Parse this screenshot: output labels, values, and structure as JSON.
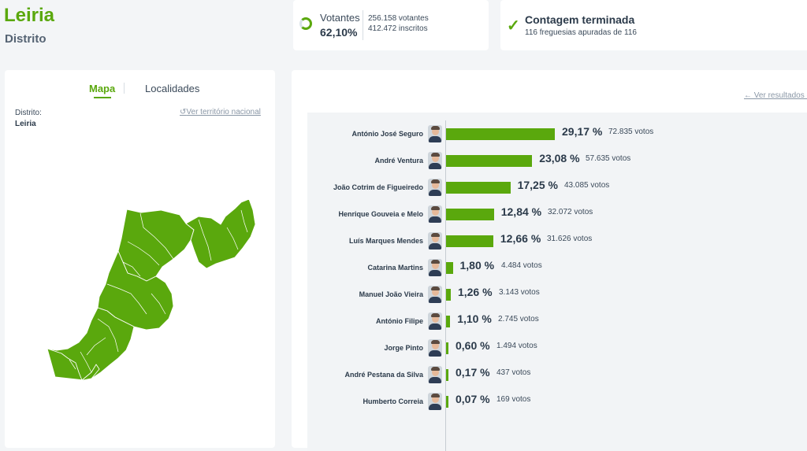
{
  "header": {
    "title": "Leiria",
    "subtitle": "Distrito"
  },
  "votantes": {
    "label": "Votantes",
    "percent": "62,10%",
    "votantes": "256.158 votantes",
    "inscritos": "412.472 inscritos",
    "progress_percent": 62.1
  },
  "contagem": {
    "title": "Contagem terminada",
    "subtitle": "116 freguesias apuradas de 116"
  },
  "map_panel": {
    "tabs": [
      {
        "label": "Mapa",
        "active": true
      },
      {
        "label": "Localidades",
        "active": false
      }
    ],
    "distrito_label": "Distrito:",
    "distrito_value": "Leiria",
    "ver_link": "Ver território nacional",
    "map_color": "#5aa80d"
  },
  "results": {
    "ver_link": "← Ver resultados c",
    "accent": "#5aa80d",
    "candidates": [
      {
        "name": "António José Seguro",
        "pct": "29,17 %",
        "votes": "72.835 votos",
        "value": 29.17
      },
      {
        "name": "André Ventura",
        "pct": "23,08 %",
        "votes": "57.635 votos",
        "value": 23.08
      },
      {
        "name": "João Cotrim de Figueiredo",
        "pct": "17,25 %",
        "votes": "43.085 votos",
        "value": 17.25
      },
      {
        "name": "Henrique Gouveia e Melo",
        "pct": "12,84 %",
        "votes": "32.072 votos",
        "value": 12.84
      },
      {
        "name": "Luís Marques Mendes",
        "pct": "12,66 %",
        "votes": "31.626 votos",
        "value": 12.66
      },
      {
        "name": "Catarina Martins",
        "pct": "1,80 %",
        "votes": "4.484 votos",
        "value": 1.8
      },
      {
        "name": "Manuel João Vieira",
        "pct": "1,26 %",
        "votes": "3.143 votos",
        "value": 1.26
      },
      {
        "name": "António Filipe",
        "pct": "1,10 %",
        "votes": "2.745 votos",
        "value": 1.1
      },
      {
        "name": "Jorge Pinto",
        "pct": "0,60 %",
        "votes": "1.494 votos",
        "value": 0.6
      },
      {
        "name": "André Pestana da Silva",
        "pct": "0,17 %",
        "votes": "437 votos",
        "value": 0.17
      },
      {
        "name": "Humberto Correia",
        "pct": "0,07 %",
        "votes": "169 votos",
        "value": 0.07
      }
    ]
  }
}
